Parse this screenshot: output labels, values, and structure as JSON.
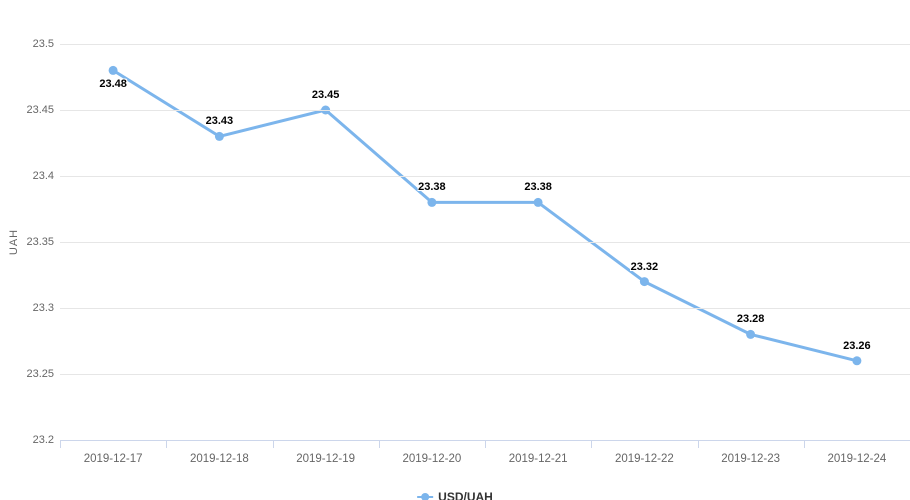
{
  "chart_data": {
    "type": "line",
    "title": "",
    "categories": [
      "2019-12-17",
      "2019-12-18",
      "2019-12-19",
      "2019-12-20",
      "2019-12-21",
      "2019-12-22",
      "2019-12-23",
      "2019-12-24"
    ],
    "series": [
      {
        "name": "USD/UAH",
        "values": [
          23.48,
          23.43,
          23.45,
          23.38,
          23.38,
          23.32,
          23.28,
          23.26
        ],
        "point_labels": [
          "23.48",
          "23.43",
          "23.45",
          "23.38",
          "23.38",
          "23.32",
          "23.28",
          "23.26"
        ]
      }
    ],
    "xlabel": "",
    "ylabel": "UAH",
    "ylim": [
      23.2,
      23.5
    ],
    "yticks": [
      23.5,
      23.45,
      23.4,
      23.35,
      23.3,
      23.25,
      23.2
    ],
    "ytick_labels": [
      "23.5",
      "23.45",
      "23.4",
      "23.35",
      "23.3",
      "23.25",
      "23.2"
    ],
    "grid": "horizontal",
    "legend_position": "bottom-center"
  },
  "legend": {
    "label": "USD/UAH"
  },
  "colors": {
    "line": "#7cb5ec",
    "marker": "#7cb5ec",
    "grid": "#e6e6e6",
    "axis_line": "#ccd6eb",
    "tick": "#ccd6eb",
    "axis_label_text": "#666666",
    "data_label_text": "#000000",
    "legend_text": "#333333",
    "background": "#ffffff"
  }
}
